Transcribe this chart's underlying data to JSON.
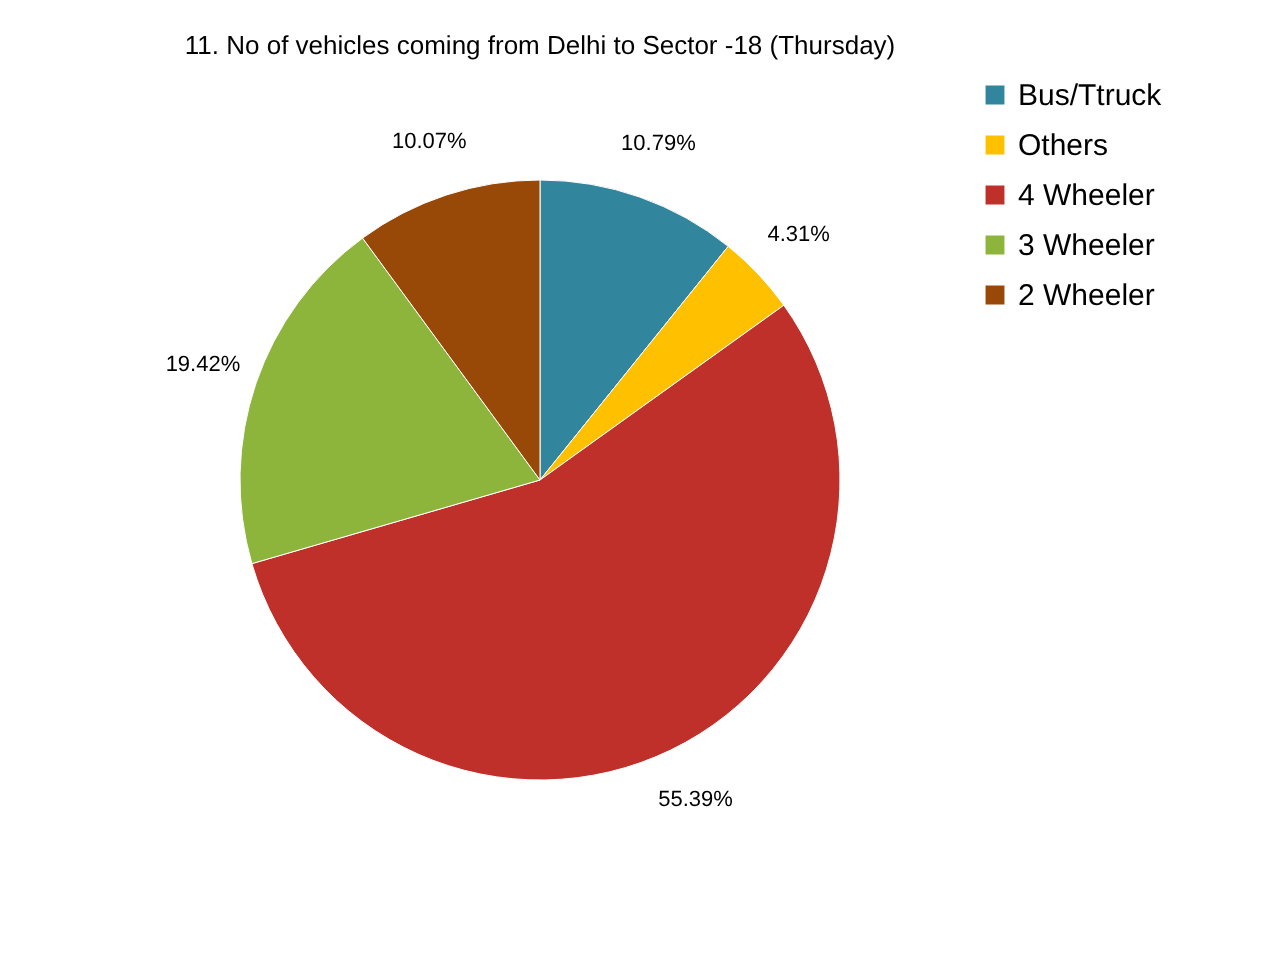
{
  "chart_data": {
    "type": "pie",
    "title": "11. No of vehicles coming from Delhi to Sector -18 (Thursday)",
    "categories": [
      "Bus/Ttruck",
      "Others",
      "4 Wheeler",
      "3 Wheeler",
      "2 Wheeler"
    ],
    "values": [
      10.79,
      4.31,
      55.39,
      19.42,
      10.07
    ],
    "colors": [
      "#31859c",
      "#ffc000",
      "#c0302b",
      "#8db53c",
      "#984807"
    ],
    "value_labels": [
      "10.79%",
      "4.31%",
      "55.39%",
      "19.42%",
      "10.07%"
    ],
    "legend": "right"
  }
}
